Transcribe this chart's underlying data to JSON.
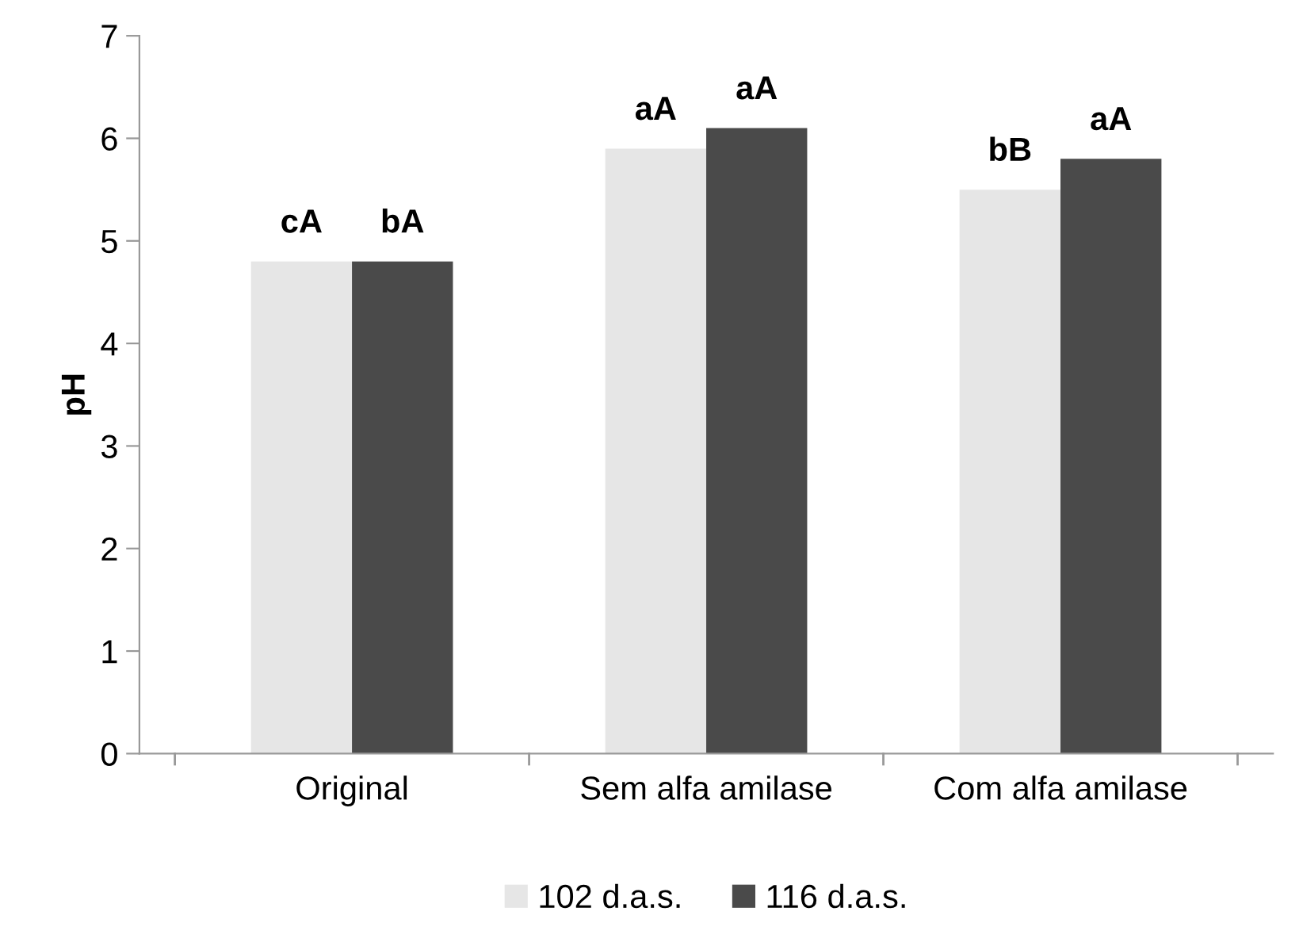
{
  "chart_data": {
    "type": "bar",
    "ylabel": "pH",
    "categories": [
      "Original",
      "Sem alfa amilase",
      "Com alfa amilase"
    ],
    "series": [
      {
        "name": "102 d.a.s.",
        "color": "#e6e6e6",
        "values": [
          4.8,
          5.9,
          5.5
        ],
        "value_labels": [
          "cA",
          "aA",
          "bB"
        ]
      },
      {
        "name": "116 d.a.s.",
        "color": "#4a4a4a",
        "values": [
          4.8,
          6.1,
          5.8
        ],
        "value_labels": [
          "bA",
          "aA",
          "aA"
        ]
      }
    ],
    "ylim": [
      0,
      7
    ],
    "yticks": [
      0,
      1,
      2,
      3,
      4,
      5,
      6,
      7
    ],
    "grid": false,
    "legend": "bottom"
  }
}
